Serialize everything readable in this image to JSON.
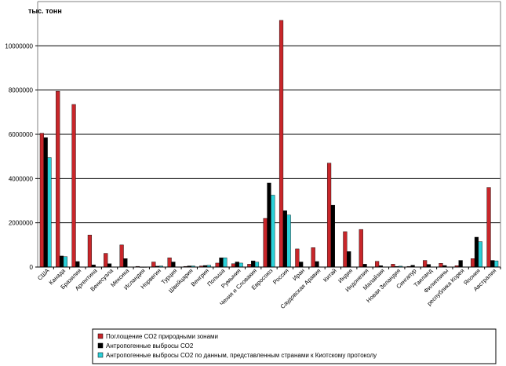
{
  "chart_data": {
    "type": "bar",
    "unit_label": "тыс. тонн",
    "ylim": [
      0,
      12000000
    ],
    "yticks": [
      0,
      2000000,
      4000000,
      6000000,
      8000000,
      10000000
    ],
    "grid": true,
    "legend_position": "bottom",
    "categories": [
      "США",
      "Канада",
      "Бразилия",
      "Аргентина",
      "Венесуэла",
      "Мексика",
      "Исландия",
      "Норвегия",
      "Турция",
      "Швейцария",
      "Венгрия",
      "Польша",
      "Румыния",
      "Чехия и Словакия",
      "Евросоюз",
      "Россия",
      "Иран",
      "Саудовская Аравия",
      "Китай",
      "Индия",
      "Индонезия",
      "Малайзия",
      "Новая Зеландия",
      "Сингапур",
      "Таиланд",
      "Филиппины",
      "республика Корея",
      "Япония",
      "Австралия"
    ],
    "series": [
      {
        "name": "Поглощение СО2 природными зонами",
        "color": "#c8262a",
        "values": [
          6050000,
          7950000,
          7350000,
          1450000,
          620000,
          1000000,
          30000,
          230000,
          420000,
          30000,
          50000,
          180000,
          150000,
          130000,
          2200000,
          11150000,
          820000,
          880000,
          4700000,
          1600000,
          1700000,
          260000,
          130000,
          30000,
          300000,
          170000,
          60000,
          380000,
          3600000
        ]
      },
      {
        "name": "Антропогенные выбросы СО2",
        "color": "#000000",
        "values": [
          5850000,
          500000,
          250000,
          100000,
          150000,
          380000,
          5000,
          40000,
          230000,
          50000,
          70000,
          420000,
          230000,
          280000,
          3800000,
          2550000,
          230000,
          250000,
          2800000,
          700000,
          130000,
          60000,
          30000,
          80000,
          120000,
          70000,
          300000,
          1350000,
          300000
        ]
      },
      {
        "name": "Антропогенные выбросы СО2 по данным, представленным странами к Киотскому протоколу",
        "color": "#2ad0d8",
        "values": [
          4950000,
          470000,
          0,
          0,
          0,
          0,
          5000,
          50000,
          0,
          50000,
          80000,
          420000,
          180000,
          220000,
          3250000,
          2350000,
          0,
          0,
          0,
          0,
          0,
          0,
          40000,
          0,
          0,
          0,
          0,
          1150000,
          280000
        ]
      }
    ]
  }
}
